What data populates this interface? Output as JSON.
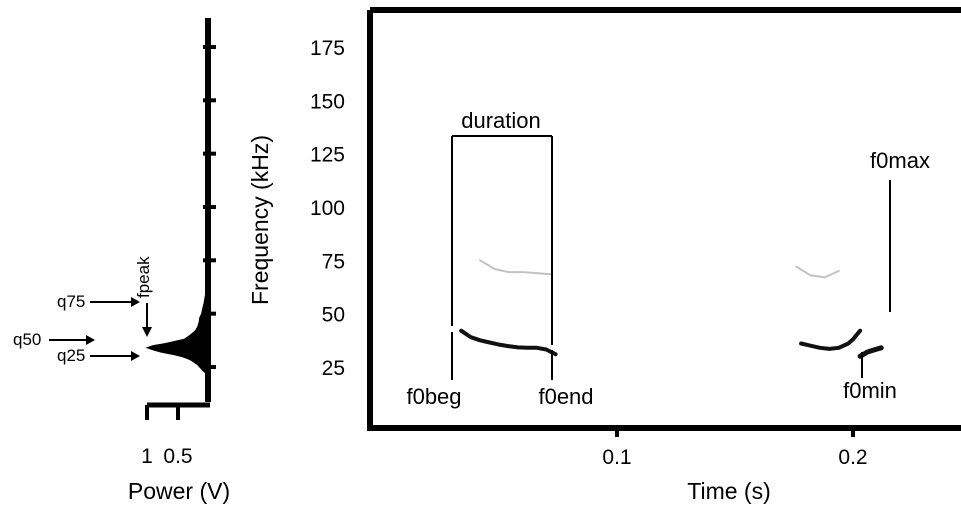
{
  "chart_data": [
    {
      "type": "area",
      "name": "power-spectrum",
      "xlabel": "Power (V)",
      "x_ticks": [
        "1",
        "0.5"
      ],
      "x_tick_values": [
        1,
        0.5
      ],
      "x_reversed": true,
      "ylabel": "",
      "ylim": [
        0,
        190
      ],
      "annotations": {
        "q75": "q75",
        "q50": "q50",
        "q25": "q25",
        "fpeak": "fpeak"
      },
      "spectrum": {
        "frequency_khz": [
          22,
          24,
          26,
          28,
          29,
          30,
          31,
          32,
          33,
          34,
          35,
          36,
          37,
          38,
          40,
          42,
          44,
          46,
          48,
          50,
          55,
          60,
          70,
          80
        ],
        "power_v": [
          0.05,
          0.12,
          0.18,
          0.28,
          0.35,
          0.45,
          0.6,
          0.78,
          0.9,
          1.0,
          0.9,
          0.7,
          0.55,
          0.4,
          0.3,
          0.22,
          0.18,
          0.16,
          0.15,
          0.12,
          0.08,
          0.05,
          0.03,
          0.0
        ]
      }
    },
    {
      "type": "scatter",
      "name": "spectrogram",
      "xlabel": "Time (s)",
      "ylabel": "Frequency (kHz)",
      "xlim": [
        0,
        0.25
      ],
      "ylim": [
        0,
        190
      ],
      "x_ticks": [
        "0.1",
        "0.2"
      ],
      "x_tick_values": [
        0.1,
        0.2
      ],
      "y_ticks": [
        "25",
        "50",
        "75",
        "100",
        "125",
        "150",
        "175"
      ],
      "y_tick_values": [
        25,
        50,
        75,
        100,
        125,
        150,
        175
      ],
      "calls": [
        {
          "fundamental": {
            "t": [
              0.034,
              0.038,
              0.042,
              0.046,
              0.05,
              0.054,
              0.058,
              0.062,
              0.066,
              0.07,
              0.074
            ],
            "f_khz": [
              42,
              39,
              37.5,
              36.5,
              35.5,
              34.8,
              34.2,
              34,
              34,
              33.2,
              31
            ]
          },
          "harmonic": {
            "t": [
              0.042,
              0.048,
              0.054,
              0.06,
              0.066,
              0.072
            ],
            "f_khz": [
              75,
              71,
              69.5,
              69.5,
              69,
              68.5
            ]
          }
        },
        {
          "fundamental": {
            "t": [
              0.178,
              0.182,
              0.186,
              0.19,
              0.194,
              0.198,
              0.2,
              0.203
            ],
            "f_khz": [
              36,
              35,
              34,
              33.5,
              34,
              36,
              38,
              42
            ]
          },
          "harmonic": {
            "t": [
              0.176,
              0.182,
              0.188,
              0.194
            ],
            "f_khz": [
              72,
              68,
              67,
              70
            ]
          },
          "second_segment": {
            "t": [
              0.203,
              0.206,
              0.209,
              0.212
            ],
            "f_khz": [
              30,
              32,
              33,
              34
            ]
          }
        }
      ],
      "annotations": {
        "duration": "duration",
        "f0beg": "f0beg",
        "f0end": "f0end",
        "f0max": "f0max",
        "f0min": "f0min"
      }
    }
  ]
}
